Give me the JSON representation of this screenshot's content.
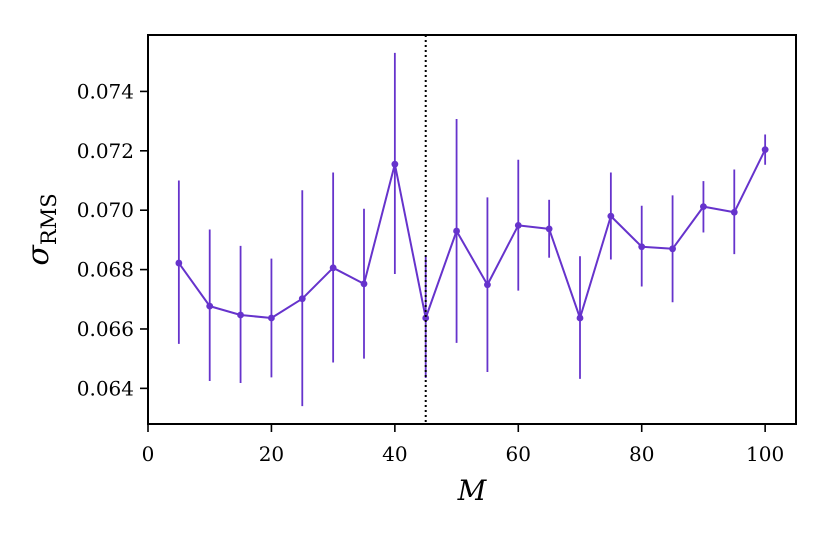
{
  "chart_data": {
    "type": "line",
    "title": "",
    "xlabel": "M",
    "ylabel": {
      "main": "σ",
      "sub": "RMS"
    },
    "xlim": [
      0,
      105
    ],
    "ylim": [
      0.0628,
      0.0759
    ],
    "x_ticks": [
      0,
      20,
      40,
      60,
      80,
      100
    ],
    "x_tick_labels": [
      "0",
      "20",
      "40",
      "60",
      "80",
      "100"
    ],
    "y_ticks": [
      0.064,
      0.066,
      0.068,
      0.07,
      0.072,
      0.074
    ],
    "y_tick_labels": [
      "0.064",
      "0.066",
      "0.068",
      "0.070",
      "0.072",
      "0.074"
    ],
    "grid": false,
    "colors": {
      "series": "#6633cc",
      "marker_line": "#000000"
    },
    "series": [
      {
        "x": [
          5,
          10,
          15,
          20,
          25,
          30,
          35,
          40,
          45,
          50,
          55,
          60,
          65,
          70,
          75,
          80,
          85,
          90,
          95,
          100
        ],
        "y": [
          0.06822,
          0.06677,
          0.06647,
          0.06637,
          0.06702,
          0.06806,
          0.06752,
          0.07155,
          0.06637,
          0.0693,
          0.06749,
          0.06949,
          0.06937,
          0.06637,
          0.0698,
          0.06877,
          0.0687,
          0.07012,
          0.06993,
          0.07204
        ],
        "y_low": [
          0.0655,
          0.06425,
          0.06418,
          0.06437,
          0.0634,
          0.06487,
          0.065,
          0.06785,
          0.06435,
          0.06553,
          0.06455,
          0.06729,
          0.0684,
          0.06432,
          0.06834,
          0.06743,
          0.0669,
          0.06925,
          0.06852,
          0.07153
        ],
        "y_high": [
          0.071,
          0.06935,
          0.0688,
          0.06837,
          0.07067,
          0.07127,
          0.07005,
          0.0753,
          0.06845,
          0.07307,
          0.07043,
          0.0717,
          0.07035,
          0.06845,
          0.07127,
          0.07015,
          0.0705,
          0.07098,
          0.07137,
          0.07255
        ]
      }
    ],
    "reference_line": {
      "x": 45,
      "style": "dotted"
    }
  }
}
